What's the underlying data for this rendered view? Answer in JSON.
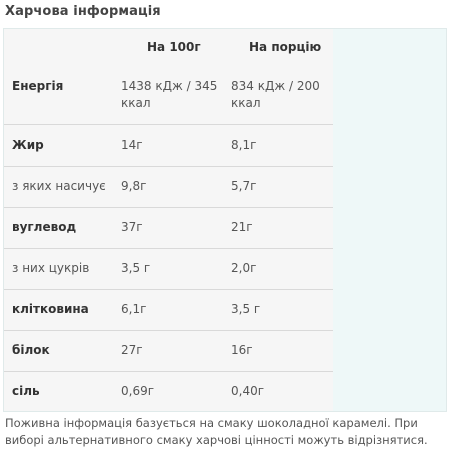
{
  "title": "Харчова інформація",
  "header": {
    "col1": "На 100г",
    "col2": "На порцію"
  },
  "rows": [
    {
      "label": "Енергія",
      "per100": "1438 кДж / 345 ккал",
      "perServing": "834 кДж / 200 ккал"
    },
    {
      "label": "Жир",
      "per100": "14г",
      "perServing": "8,1г"
    },
    {
      "label": "з яких насичує",
      "per100": "9,8г",
      "perServing": "5,7г"
    },
    {
      "label": "вуглевод",
      "per100": "37г",
      "perServing": "21г"
    },
    {
      "label": "з них цукрів",
      "per100": "3,5 г",
      "perServing": "2,0г"
    },
    {
      "label": "клітковина",
      "per100": "6,1г",
      "perServing": "3,5 г"
    },
    {
      "label": "білок",
      "per100": "27г",
      "perServing": "16г"
    },
    {
      "label": "сіль",
      "per100": "0,69г",
      "perServing": "0,40г"
    }
  ],
  "footnote": "Поживна інформація базується на смаку шоколадної карамелі. При виборі альтернативного смаку харчові цінності можуть відрізнятися."
}
